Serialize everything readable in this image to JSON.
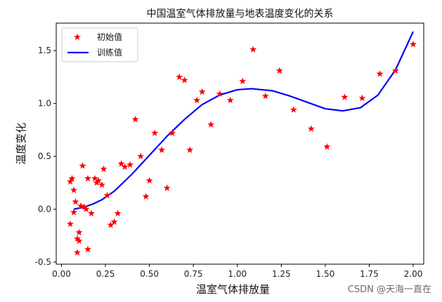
{
  "chart_data": {
    "type": "scatter+line",
    "title": "中国温室气体排放量与地表温度变化的关系",
    "xlabel": "温室气体排放量",
    "ylabel": "温度变化",
    "xlim": [
      -0.03,
      2.06
    ],
    "ylim": [
      -0.52,
      1.76
    ],
    "xticks": [
      "0.00",
      "0.25",
      "0.50",
      "0.75",
      "1.00",
      "1.25",
      "1.50",
      "1.75",
      "2.00"
    ],
    "xtick_values": [
      0,
      0.25,
      0.5,
      0.75,
      1.0,
      1.25,
      1.5,
      1.75,
      2.0
    ],
    "yticks": [
      "-0.5",
      "0.0",
      "0.5",
      "1.0",
      "1.5"
    ],
    "ytick_values": [
      -0.5,
      0,
      0.5,
      1.0,
      1.5
    ],
    "legend_position": "top-left",
    "grid": false,
    "series": [
      {
        "name": "初始值",
        "kind": "scatter",
        "marker": "star",
        "color": "#ff0000",
        "points": [
          [
            0.05,
            -0.14
          ],
          [
            0.05,
            0.26
          ],
          [
            0.06,
            0.29
          ],
          [
            0.07,
            -0.03
          ],
          [
            0.07,
            0.18
          ],
          [
            0.08,
            0.07
          ],
          [
            0.09,
            -0.28
          ],
          [
            0.09,
            -0.41
          ],
          [
            0.1,
            -0.22
          ],
          [
            0.1,
            -0.3
          ],
          [
            0.11,
            0.03
          ],
          [
            0.12,
            0.41
          ],
          [
            0.13,
            0.02
          ],
          [
            0.14,
            0.0
          ],
          [
            0.15,
            0.29
          ],
          [
            0.15,
            -0.38
          ],
          [
            0.17,
            -0.04
          ],
          [
            0.19,
            0.29
          ],
          [
            0.2,
            0.25
          ],
          [
            0.21,
            0.27
          ],
          [
            0.23,
            0.23
          ],
          [
            0.24,
            0.38
          ],
          [
            0.26,
            0.13
          ],
          [
            0.28,
            -0.15
          ],
          [
            0.3,
            -0.12
          ],
          [
            0.32,
            -0.04
          ],
          [
            0.34,
            0.43
          ],
          [
            0.36,
            0.4
          ],
          [
            0.39,
            0.42
          ],
          [
            0.42,
            0.85
          ],
          [
            0.45,
            0.5
          ],
          [
            0.48,
            0.12
          ],
          [
            0.5,
            0.27
          ],
          [
            0.53,
            0.72
          ],
          [
            0.57,
            0.56
          ],
          [
            0.6,
            0.2
          ],
          [
            0.63,
            0.72
          ],
          [
            0.67,
            1.25
          ],
          [
            0.7,
            1.22
          ],
          [
            0.73,
            0.56
          ],
          [
            0.77,
            1.03
          ],
          [
            0.8,
            1.11
          ],
          [
            0.85,
            0.8
          ],
          [
            0.9,
            1.09
          ],
          [
            0.96,
            1.03
          ],
          [
            1.03,
            1.21
          ],
          [
            1.09,
            1.51
          ],
          [
            1.16,
            1.07
          ],
          [
            1.24,
            1.31
          ],
          [
            1.32,
            0.94
          ],
          [
            1.42,
            0.76
          ],
          [
            1.51,
            0.59
          ],
          [
            1.61,
            1.06
          ],
          [
            1.71,
            1.05
          ],
          [
            1.81,
            1.28
          ],
          [
            1.9,
            1.31
          ],
          [
            2.0,
            1.56
          ]
        ]
      },
      {
        "name": "训练值",
        "kind": "line",
        "color": "#0000ff",
        "points": [
          [
            0.07,
            0.0
          ],
          [
            0.1,
            0.01
          ],
          [
            0.13,
            0.02
          ],
          [
            0.18,
            0.05
          ],
          [
            0.23,
            0.09
          ],
          [
            0.3,
            0.17
          ],
          [
            0.4,
            0.33
          ],
          [
            0.5,
            0.51
          ],
          [
            0.6,
            0.69
          ],
          [
            0.7,
            0.85
          ],
          [
            0.8,
            0.99
          ],
          [
            0.9,
            1.08
          ],
          [
            1.0,
            1.13
          ],
          [
            1.08,
            1.14
          ],
          [
            1.2,
            1.12
          ],
          [
            1.3,
            1.07
          ],
          [
            1.4,
            1.01
          ],
          [
            1.5,
            0.95
          ],
          [
            1.6,
            0.93
          ],
          [
            1.7,
            0.96
          ],
          [
            1.8,
            1.08
          ],
          [
            1.9,
            1.32
          ],
          [
            2.0,
            1.68
          ]
        ]
      }
    ]
  },
  "watermark": "CSDN @天海一直在"
}
